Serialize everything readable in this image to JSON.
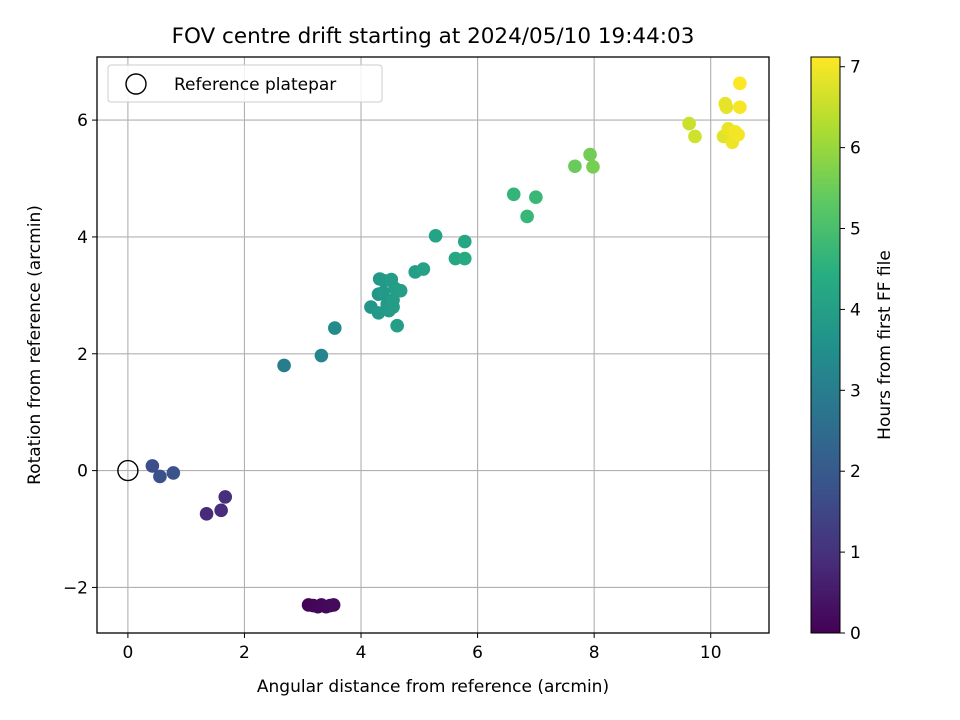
{
  "chart_data": {
    "type": "scatter",
    "title": "FOV centre drift starting at 2024/05/10 19:44:03",
    "xlabel": "Angular distance from reference (arcmin)",
    "ylabel": "Rotation from reference (arcmin)",
    "xlim": [
      -0.53,
      11.0
    ],
    "ylim": [
      -2.78,
      7.08
    ],
    "xticks": [
      0,
      2,
      4,
      6,
      8,
      10
    ],
    "yticks": [
      -2,
      0,
      2,
      4,
      6
    ],
    "ytick_labels": [
      "−2",
      "0",
      "2",
      "4",
      "6"
    ],
    "grid": true,
    "legend": {
      "location": "upper-left",
      "entries": [
        "Reference platepar"
      ]
    },
    "reference_point": {
      "x": 0,
      "y": 0
    },
    "colorbar": {
      "label": "Hours from first FF file",
      "range": [
        0,
        7.12
      ],
      "ticks": [
        0,
        1,
        2,
        3,
        4,
        5,
        6,
        7
      ],
      "colormap": "viridis"
    },
    "points": [
      {
        "x": 3.1,
        "y": -2.3,
        "c": 0.05
      },
      {
        "x": 3.18,
        "y": -2.31,
        "c": 0.08
      },
      {
        "x": 3.26,
        "y": -2.33,
        "c": 0.1
      },
      {
        "x": 3.32,
        "y": -2.3,
        "c": 0.12
      },
      {
        "x": 3.4,
        "y": -2.33,
        "c": 0.14
      },
      {
        "x": 3.47,
        "y": -2.31,
        "c": 0.16
      },
      {
        "x": 3.53,
        "y": -2.3,
        "c": 0.18
      },
      {
        "x": 1.35,
        "y": -0.74,
        "c": 0.85
      },
      {
        "x": 1.6,
        "y": -0.68,
        "c": 0.9
      },
      {
        "x": 1.67,
        "y": -0.45,
        "c": 0.95
      },
      {
        "x": 0.42,
        "y": 0.08,
        "c": 1.7
      },
      {
        "x": 0.55,
        "y": -0.1,
        "c": 1.75
      },
      {
        "x": 0.78,
        "y": -0.04,
        "c": 1.8
      },
      {
        "x": 2.68,
        "y": 1.8,
        "c": 3.0
      },
      {
        "x": 3.32,
        "y": 1.97,
        "c": 3.2
      },
      {
        "x": 3.55,
        "y": 2.44,
        "c": 3.4
      },
      {
        "x": 4.17,
        "y": 2.8,
        "c": 3.7
      },
      {
        "x": 4.3,
        "y": 3.02,
        "c": 3.75
      },
      {
        "x": 4.32,
        "y": 3.28,
        "c": 3.8
      },
      {
        "x": 4.3,
        "y": 2.7,
        "c": 3.8
      },
      {
        "x": 4.38,
        "y": 3.05,
        "c": 3.82
      },
      {
        "x": 4.4,
        "y": 3.25,
        "c": 3.85
      },
      {
        "x": 4.45,
        "y": 2.85,
        "c": 3.85
      },
      {
        "x": 4.48,
        "y": 2.74,
        "c": 3.88
      },
      {
        "x": 4.52,
        "y": 3.27,
        "c": 3.9
      },
      {
        "x": 4.55,
        "y": 2.92,
        "c": 3.9
      },
      {
        "x": 4.58,
        "y": 3.12,
        "c": 3.92
      },
      {
        "x": 4.55,
        "y": 2.8,
        "c": 3.92
      },
      {
        "x": 4.62,
        "y": 2.48,
        "c": 3.95
      },
      {
        "x": 4.68,
        "y": 3.08,
        "c": 3.95
      },
      {
        "x": 4.93,
        "y": 3.4,
        "c": 4.0
      },
      {
        "x": 5.07,
        "y": 3.45,
        "c": 4.05
      },
      {
        "x": 5.28,
        "y": 4.02,
        "c": 4.1
      },
      {
        "x": 5.62,
        "y": 3.63,
        "c": 4.2
      },
      {
        "x": 5.78,
        "y": 3.92,
        "c": 4.25
      },
      {
        "x": 5.78,
        "y": 3.63,
        "c": 4.3
      },
      {
        "x": 6.62,
        "y": 4.73,
        "c": 4.65
      },
      {
        "x": 6.85,
        "y": 4.35,
        "c": 4.7
      },
      {
        "x": 7.0,
        "y": 4.68,
        "c": 4.75
      },
      {
        "x": 7.67,
        "y": 5.21,
        "c": 5.45
      },
      {
        "x": 7.93,
        "y": 5.41,
        "c": 5.55
      },
      {
        "x": 7.98,
        "y": 5.2,
        "c": 5.6
      },
      {
        "x": 9.63,
        "y": 5.94,
        "c": 6.55
      },
      {
        "x": 9.73,
        "y": 5.72,
        "c": 6.6
      },
      {
        "x": 10.22,
        "y": 5.72,
        "c": 6.8
      },
      {
        "x": 10.25,
        "y": 6.28,
        "c": 6.85
      },
      {
        "x": 10.27,
        "y": 6.22,
        "c": 6.85
      },
      {
        "x": 10.3,
        "y": 5.85,
        "c": 6.9
      },
      {
        "x": 10.37,
        "y": 5.62,
        "c": 6.95
      },
      {
        "x": 10.42,
        "y": 5.8,
        "c": 7.0
      },
      {
        "x": 10.47,
        "y": 5.75,
        "c": 7.0
      },
      {
        "x": 10.5,
        "y": 6.22,
        "c": 7.05
      },
      {
        "x": 10.5,
        "y": 6.63,
        "c": 7.1
      }
    ]
  }
}
